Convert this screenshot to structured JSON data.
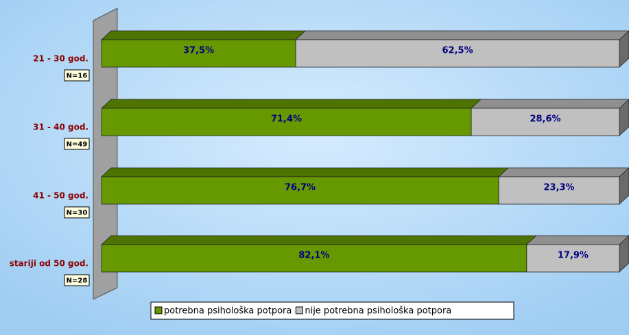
{
  "chart_data": {
    "type": "stacked_bar_100",
    "orientation": "horizontal",
    "categories": [
      "21 - 30 god.",
      "31 - 40 god.",
      "41 - 50 god.",
      "stariji od 50 god."
    ],
    "annotations": [
      "N=16",
      "N=49",
      "N=30",
      "N=28"
    ],
    "xlim": [
      0,
      100
    ],
    "legend": "bottom",
    "series": [
      {
        "name": "potrebna psihološka potpora",
        "color": "#669900",
        "values": [
          37.5,
          71.4,
          76.7,
          82.1
        ],
        "value_labels": [
          "37,5%",
          "71,4%",
          "76,7%",
          "82,1%"
        ]
      },
      {
        "name": "nije potrebna psihološka potpora",
        "color": "#c0c0c0",
        "values": [
          62.5,
          28.6,
          23.3,
          17.9
        ],
        "value_labels": [
          "62,5%",
          "28,6%",
          "23,3%",
          "17,9%"
        ]
      }
    ]
  }
}
